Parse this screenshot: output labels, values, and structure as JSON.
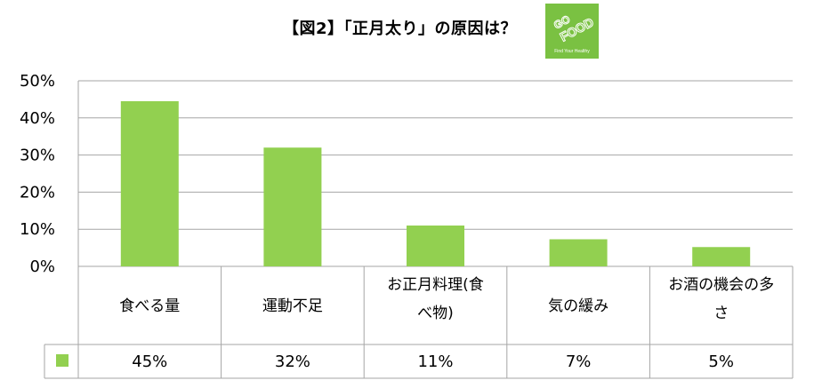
{
  "chart_data": {
    "type": "bar",
    "title": "【図2】「正月太り」の原因は？",
    "categories": [
      "食べる量",
      "運動不足",
      "お正月料理(食べ物)",
      "気の緩み",
      "お酒の機会の多さ"
    ],
    "category_lines": [
      [
        "食べる量"
      ],
      [
        "運動不足"
      ],
      [
        "お正月料理(食",
        "べ物)"
      ],
      [
        "気の緩み"
      ],
      [
        "お酒の機会の多",
        "さ"
      ]
    ],
    "values": [
      0.445,
      0.32,
      0.11,
      0.073,
      0.052
    ],
    "value_labels": [
      "45%",
      "32%",
      "11%",
      "7%",
      "5%"
    ],
    "y_ticks": [
      "0%",
      "10%",
      "20%",
      "30%",
      "40%",
      "50%"
    ],
    "ylim": [
      0,
      0.5
    ],
    "grid": true,
    "legend": "data-table",
    "series_color": "#92d050"
  },
  "logo": {
    "line1": "GO",
    "line2": "FOOD",
    "tagline": "Find Your Healthy",
    "color": "#7ac142"
  }
}
